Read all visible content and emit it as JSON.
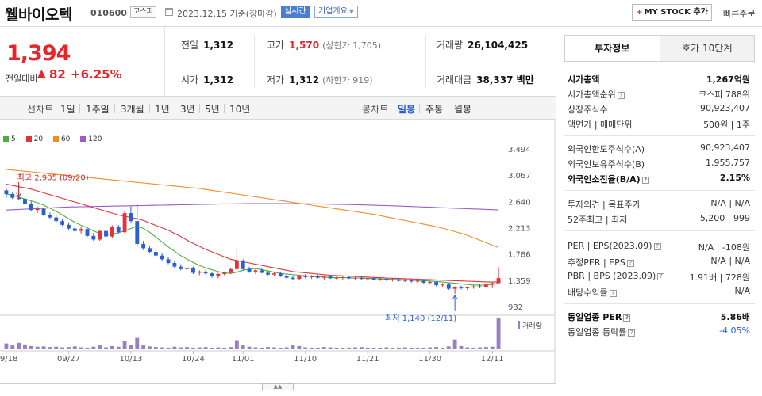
{
  "header": {
    "name": "웰바이오텍",
    "code": "010600",
    "market": "코스피",
    "date": "2023.12.15 기준(장마감)",
    "realtime": "실시간",
    "overview": "기업개요",
    "mystock": "MY STOCK 추가",
    "quick_order": "빠른주문"
  },
  "price": {
    "current": "1,394",
    "change_label": "전일대비",
    "change_arrow": "▲",
    "change": "82",
    "rate": "+6.25%"
  },
  "stats": {
    "prev_close": {
      "label": "전일",
      "value": "1,312"
    },
    "open": {
      "label": "시가",
      "value": "1,312"
    },
    "high": {
      "label": "고가",
      "value": "1,570",
      "sub": "(상한가 1,705)"
    },
    "low": {
      "label": "저가",
      "value": "1,312",
      "sub": "(하한가 919)"
    },
    "volume": {
      "label": "거래량",
      "value": "26,104,425"
    },
    "amount": {
      "label": "거래대금",
      "value": "38,337 백만"
    }
  },
  "toolbar": {
    "line_label": "선차트",
    "ranges": [
      "1일",
      "1주일",
      "3개월",
      "1년",
      "3년",
      "5년",
      "10년"
    ],
    "candle_label": "봉차트",
    "candle_types": [
      "일봉",
      "주봉",
      "월봉"
    ],
    "active_candle": "일봉"
  },
  "chart_data": {
    "type": "candlestick",
    "legend": [
      {
        "name": "5",
        "color": "#4caf3c"
      },
      {
        "name": "20",
        "color": "#e2333b"
      },
      {
        "name": "60",
        "color": "#f08c2a"
      },
      {
        "name": "120",
        "color": "#9b5cc4"
      }
    ],
    "y_ticks": [
      932,
      1359,
      1786,
      2213,
      2640,
      3067,
      3494
    ],
    "x_ticks": [
      "09/18",
      "09/27",
      "10/13",
      "10/24",
      "11/01",
      "11/10",
      "11/21",
      "11/30",
      "12/11"
    ],
    "x_tick_index": [
      0,
      10,
      20,
      30,
      38,
      48,
      58,
      68,
      78
    ],
    "high_annotation": "최고 2,905 (09/20)",
    "low_annotation": "최저 1,140 (12/11)",
    "volume_label": "거래량",
    "candles": [
      [
        2820,
        2860,
        2700,
        2760
      ],
      [
        2760,
        2800,
        2680,
        2700
      ],
      [
        2700,
        2905,
        2660,
        2680
      ],
      [
        2680,
        2720,
        2580,
        2600
      ],
      [
        2600,
        2640,
        2480,
        2500
      ],
      [
        2500,
        2560,
        2450,
        2520
      ],
      [
        2520,
        2540,
        2400,
        2420
      ],
      [
        2420,
        2460,
        2350,
        2380
      ],
      [
        2380,
        2420,
        2300,
        2320
      ],
      [
        2320,
        2360,
        2240,
        2260
      ],
      [
        2260,
        2300,
        2180,
        2200
      ],
      [
        2200,
        2240,
        2140,
        2160
      ],
      [
        2160,
        2220,
        2120,
        2190
      ],
      [
        2190,
        2200,
        2060,
        2080
      ],
      [
        2080,
        2130,
        2000,
        2020
      ],
      [
        2020,
        2180,
        2000,
        2160
      ],
      [
        2160,
        2200,
        2050,
        2070
      ],
      [
        2070,
        2250,
        2050,
        2220
      ],
      [
        2220,
        2260,
        2120,
        2140
      ],
      [
        2140,
        2480,
        2120,
        2450
      ],
      [
        2450,
        2560,
        2300,
        2320
      ],
      [
        2320,
        2600,
        1900,
        1950
      ],
      [
        1950,
        2000,
        1850,
        1880
      ],
      [
        1880,
        1920,
        1800,
        1820
      ],
      [
        1820,
        1860,
        1740,
        1760
      ],
      [
        1760,
        1800,
        1680,
        1700
      ],
      [
        1700,
        1740,
        1620,
        1640
      ],
      [
        1640,
        1680,
        1560,
        1580
      ],
      [
        1580,
        1620,
        1520,
        1540
      ],
      [
        1540,
        1600,
        1500,
        1560
      ],
      [
        1560,
        1580,
        1460,
        1480
      ],
      [
        1480,
        1520,
        1440,
        1500
      ],
      [
        1500,
        1530,
        1450,
        1470
      ],
      [
        1470,
        1490,
        1400,
        1420
      ],
      [
        1420,
        1480,
        1390,
        1460
      ],
      [
        1460,
        1500,
        1440,
        1480
      ],
      [
        1480,
        1560,
        1460,
        1540
      ],
      [
        1540,
        1900,
        1520,
        1680
      ],
      [
        1680,
        1700,
        1520,
        1540
      ],
      [
        1540,
        1580,
        1480,
        1500
      ],
      [
        1500,
        1540,
        1460,
        1520
      ],
      [
        1520,
        1550,
        1470,
        1480
      ],
      [
        1480,
        1510,
        1440,
        1450
      ],
      [
        1450,
        1490,
        1420,
        1470
      ],
      [
        1470,
        1500,
        1410,
        1430
      ],
      [
        1430,
        1460,
        1380,
        1400
      ],
      [
        1400,
        1430,
        1360,
        1380
      ],
      [
        1380,
        1450,
        1360,
        1430
      ],
      [
        1430,
        1460,
        1390,
        1410
      ],
      [
        1410,
        1440,
        1380,
        1420
      ],
      [
        1420,
        1450,
        1390,
        1400
      ],
      [
        1400,
        1430,
        1370,
        1420
      ],
      [
        1420,
        1440,
        1380,
        1390
      ],
      [
        1390,
        1420,
        1360,
        1400
      ],
      [
        1400,
        1430,
        1370,
        1410
      ],
      [
        1410,
        1430,
        1380,
        1390
      ],
      [
        1390,
        1420,
        1370,
        1400
      ],
      [
        1400,
        1420,
        1370,
        1380
      ],
      [
        1380,
        1400,
        1350,
        1390
      ],
      [
        1390,
        1410,
        1360,
        1370
      ],
      [
        1370,
        1400,
        1350,
        1380
      ],
      [
        1380,
        1400,
        1350,
        1360
      ],
      [
        1360,
        1390,
        1340,
        1370
      ],
      [
        1370,
        1390,
        1340,
        1350
      ],
      [
        1350,
        1380,
        1330,
        1360
      ],
      [
        1360,
        1380,
        1320,
        1340
      ],
      [
        1340,
        1370,
        1320,
        1350
      ],
      [
        1350,
        1370,
        1300,
        1320
      ],
      [
        1320,
        1350,
        1290,
        1330
      ],
      [
        1330,
        1340,
        1260,
        1280
      ],
      [
        1280,
        1310,
        1250,
        1290
      ],
      [
        1290,
        1320,
        1200,
        1220
      ],
      [
        1220,
        1260,
        1140,
        1250
      ],
      [
        1250,
        1270,
        1210,
        1230
      ],
      [
        1230,
        1260,
        1200,
        1240
      ],
      [
        1240,
        1280,
        1220,
        1260
      ],
      [
        1260,
        1300,
        1230,
        1250
      ],
      [
        1250,
        1300,
        1240,
        1290
      ],
      [
        1290,
        1330,
        1230,
        1312
      ],
      [
        1312,
        1570,
        1312,
        1394
      ]
    ],
    "ma5": [
      2760,
      2740,
      2710,
      2680,
      2650,
      2620,
      2580,
      2530,
      2480,
      2420,
      2360,
      2300,
      2250,
      2210,
      2160,
      2120,
      2100,
      2110,
      2130,
      2160,
      2200,
      2240,
      2200,
      2140,
      2060,
      1980,
      1900,
      1830,
      1760,
      1700,
      1650,
      1600,
      1560,
      1530,
      1500,
      1480,
      1470,
      1490,
      1520,
      1540,
      1550,
      1530,
      1510,
      1490,
      1470,
      1460,
      1450,
      1440,
      1430,
      1420,
      1415,
      1410,
      1405,
      1402,
      1400,
      1398,
      1396,
      1394,
      1390,
      1386,
      1382,
      1378,
      1374,
      1370,
      1366,
      1362,
      1358,
      1352,
      1346,
      1340,
      1330,
      1320,
      1310,
      1300,
      1290,
      1282,
      1278,
      1280,
      1290,
      1310
    ],
    "ma20": [
      2920,
      2900,
      2880,
      2860,
      2840,
      2810,
      2780,
      2750,
      2720,
      2690,
      2660,
      2630,
      2600,
      2570,
      2540,
      2510,
      2480,
      2450,
      2420,
      2400,
      2380,
      2360,
      2330,
      2290,
      2250,
      2210,
      2170,
      2120,
      2070,
      2010,
      1960,
      1910,
      1860,
      1820,
      1780,
      1740,
      1700,
      1680,
      1660,
      1640,
      1620,
      1600,
      1580,
      1560,
      1540,
      1520,
      1500,
      1490,
      1480,
      1470,
      1460,
      1450,
      1440,
      1435,
      1430,
      1425,
      1420,
      1415,
      1410,
      1405,
      1400,
      1396,
      1392,
      1388,
      1384,
      1380,
      1376,
      1372,
      1368,
      1364,
      1360,
      1356,
      1352,
      1348,
      1344,
      1340,
      1336,
      1332,
      1330,
      1332
    ],
    "ma60": [
      3160,
      3150,
      3140,
      3130,
      3120,
      3110,
      3100,
      3090,
      3080,
      3070,
      3060,
      3050,
      3040,
      3030,
      3020,
      3010,
      3000,
      2990,
      2980,
      2970,
      2960,
      2950,
      2940,
      2930,
      2920,
      2910,
      2900,
      2890,
      2880,
      2870,
      2860,
      2850,
      2835,
      2820,
      2805,
      2790,
      2775,
      2760,
      2745,
      2730,
      2715,
      2700,
      2685,
      2670,
      2655,
      2640,
      2625,
      2610,
      2595,
      2580,
      2565,
      2550,
      2535,
      2520,
      2505,
      2490,
      2475,
      2460,
      2445,
      2430,
      2410,
      2390,
      2370,
      2350,
      2330,
      2310,
      2290,
      2270,
      2250,
      2230,
      2205,
      2180,
      2150,
      2120,
      2090,
      2050,
      2010,
      1970,
      1930,
      1890
    ],
    "ma120": [
      2500,
      2505,
      2510,
      2515,
      2520,
      2525,
      2530,
      2535,
      2540,
      2545,
      2550,
      2552,
      2554,
      2556,
      2558,
      2560,
      2562,
      2564,
      2566,
      2568,
      2570,
      2572,
      2574,
      2576,
      2578,
      2580,
      2582,
      2584,
      2586,
      2588,
      2590,
      2592,
      2594,
      2596,
      2598,
      2600,
      2601,
      2602,
      2603,
      2604,
      2605,
      2605,
      2605,
      2605,
      2605,
      2605,
      2604,
      2603,
      2602,
      2601,
      2600,
      2598,
      2596,
      2594,
      2592,
      2590,
      2588,
      2585,
      2582,
      2579,
      2576,
      2573,
      2570,
      2566,
      2562,
      2558,
      2554,
      2550,
      2546,
      2542,
      2538,
      2534,
      2530,
      2526,
      2522,
      2518,
      2514,
      2510,
      2506,
      2502
    ],
    "volume": [
      18,
      12,
      20,
      15,
      10,
      8,
      9,
      7,
      8,
      6,
      7,
      9,
      6,
      5,
      8,
      12,
      6,
      10,
      8,
      25,
      14,
      35,
      12,
      9,
      7,
      6,
      5,
      8,
      6,
      7,
      5,
      6,
      7,
      5,
      6,
      5,
      7,
      28,
      12,
      8,
      6,
      5,
      7,
      6,
      5,
      6,
      12,
      10,
      6,
      5,
      5,
      7,
      6,
      5,
      4,
      5,
      6,
      7,
      5,
      4,
      5,
      6,
      5,
      4,
      6,
      5,
      4,
      5,
      6,
      7,
      5,
      9,
      30,
      10,
      6,
      5,
      6,
      7,
      8,
      95
    ]
  },
  "right_panel": {
    "tabs": [
      "투자정보",
      "호가 10단계"
    ],
    "rows_a": [
      {
        "label": "시가총액",
        "value": "1,267억원",
        "bold": true
      },
      {
        "label": "시가총액순위",
        "value": "코스피 788위"
      },
      {
        "label": "상장주식수",
        "value": "90,923,407"
      },
      {
        "label": "액면가 | 매매단위",
        "value": "500원 | 1주"
      }
    ],
    "rows_b": [
      {
        "label": "외국인한도주식수(A)",
        "value": "90,923,407"
      },
      {
        "label": "외국인보유주식수(B)",
        "value": "1,955,757"
      },
      {
        "label": "외국인소진율(B/A)",
        "value": "2.15%",
        "bold": true
      }
    ],
    "rows_c": [
      {
        "label": "투자의견 | 목표주가",
        "value": "N/A | N/A"
      },
      {
        "label": "52주최고 | 최저",
        "value": "5,200 | 999"
      }
    ],
    "rows_d": [
      {
        "label": "PER | EPS(2023.09)",
        "value": "N/A | -108원"
      },
      {
        "label": "추정PER | EPS",
        "value": "N/A | N/A"
      },
      {
        "label": "PBR | BPS (2023.09)",
        "value": "1.91배 | 728원"
      },
      {
        "label": "배당수익률",
        "value": "N/A"
      }
    ],
    "rows_e": [
      {
        "label": "동일업종 PER",
        "value": "5.86배",
        "bold": true
      },
      {
        "label": "동일업종 등락률",
        "value": "-4.05%",
        "blue": true
      }
    ]
  }
}
